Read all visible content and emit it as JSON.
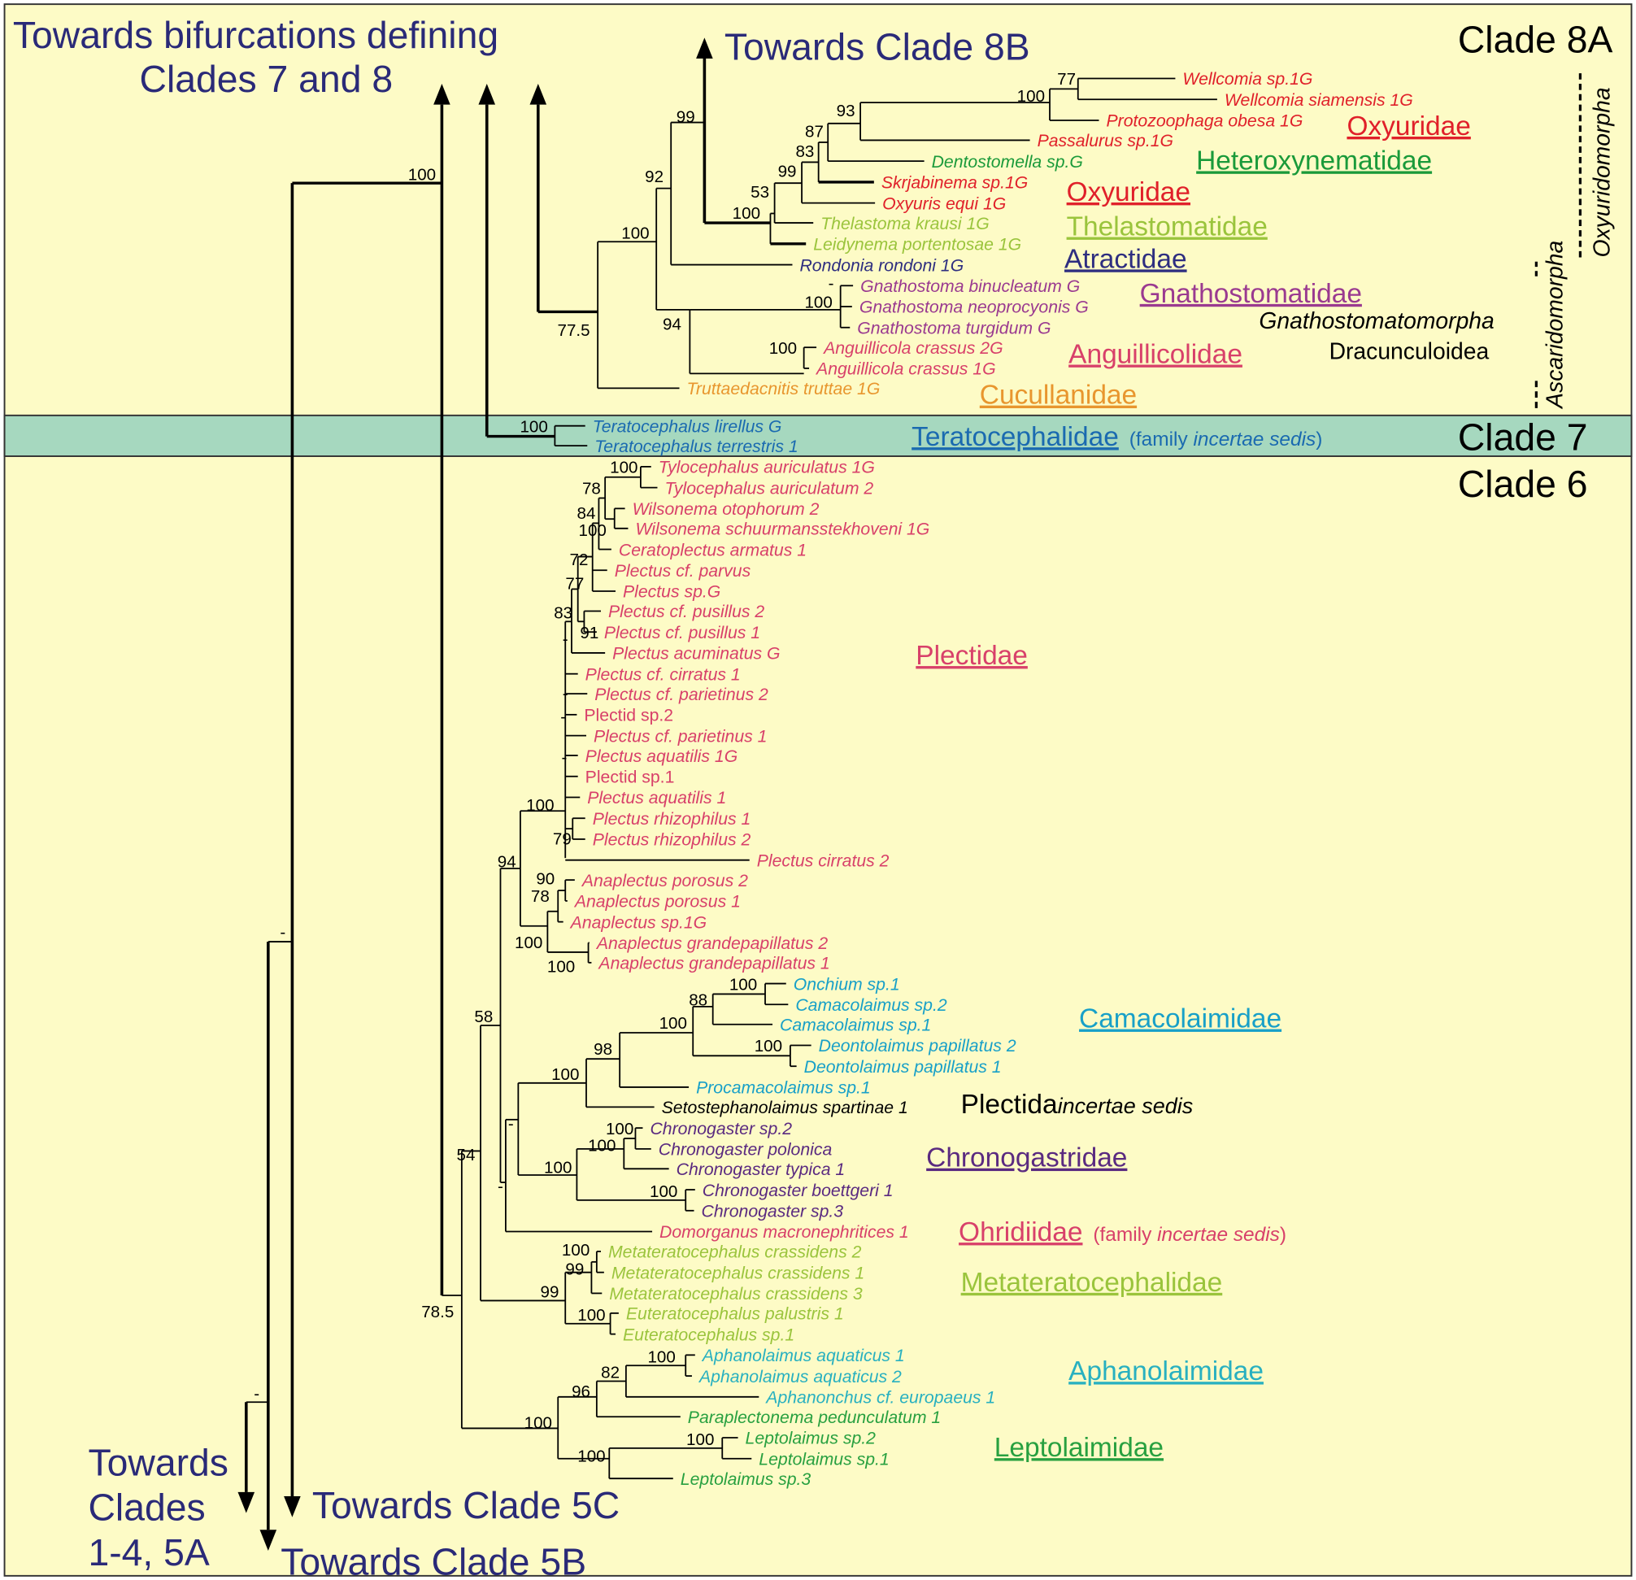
{
  "headings": {
    "bifurcations_line1": "Towards bifurcations defining",
    "bifurcations_line2": "Clades 7 and 8",
    "clade8b": "Towards Clade 8B",
    "clades14_line1": "Towards",
    "clades14_line2": "Clades",
    "clades14_line3": "1-4, 5A",
    "clade5c": "Towards Clade 5C",
    "clade5b": "Towards Clade 5B"
  },
  "clades": [
    "Clade 8A",
    "Clade 7",
    "Clade 6"
  ],
  "colors": {
    "background": "#fdfbc6",
    "clade7_band": "#a6d8bf",
    "heading": "#2a2a78"
  },
  "taxa": [
    {
      "name": "Wellcomia sp.1G",
      "color": "#e0202a",
      "italic": true
    },
    {
      "name": "Wellcomia siamensis 1G",
      "color": "#e0202a",
      "italic": true
    },
    {
      "name": "Protozoophaga obesa 1G",
      "color": "#e0202a",
      "italic": true
    },
    {
      "name": "Passalurus sp.1G",
      "color": "#e0202a",
      "italic": true
    },
    {
      "name": "Dentostomella sp.G",
      "color": "#1a9a3a",
      "italic": true
    },
    {
      "name": "Skrjabinema sp.1G",
      "color": "#e0202a",
      "italic": true
    },
    {
      "name": "Oxyuris equi 1G",
      "color": "#e0202a",
      "italic": true
    },
    {
      "name": "Thelastoma krausi 1G",
      "color": "#9ac43c",
      "italic": true
    },
    {
      "name": "Leidynema portentosae 1G",
      "color": "#9ac43c",
      "italic": true
    },
    {
      "name": "Rondonia rondoni 1G",
      "color": "#2e2e80",
      "italic": true
    },
    {
      "name": "Gnathostoma binucleatum G",
      "color": "#9a3a90",
      "italic": true
    },
    {
      "name": "Gnathostoma neoprocyonis G",
      "color": "#9a3a90",
      "italic": true
    },
    {
      "name": "Gnathostoma turgidum G",
      "color": "#9a3a90",
      "italic": true
    },
    {
      "name": "Anguillicola crassus 2G",
      "color": "#d8406a",
      "italic": true
    },
    {
      "name": "Anguillicola crassus 1G",
      "color": "#d8406a",
      "italic": true
    },
    {
      "name": "Truttaedacnitis truttae 1G",
      "color": "#e8962e",
      "italic": true
    },
    {
      "name": "Teratocephalus lirellus G",
      "color": "#1a6ab0",
      "italic": true
    },
    {
      "name": "Teratocephalus terrestris 1",
      "color": "#1a6ab0",
      "italic": true
    },
    {
      "name": "Tylocephalus auriculatus 1G",
      "color": "#d8406a",
      "italic": true
    },
    {
      "name": "Tylocephalus auriculatum 2",
      "color": "#d8406a",
      "italic": true
    },
    {
      "name": "Wilsonema otophorum 2",
      "color": "#d8406a",
      "italic": true
    },
    {
      "name": "Wilsonema schuurmansstekhoveni 1G",
      "color": "#d8406a",
      "italic": true
    },
    {
      "name": "Ceratoplectus armatus 1",
      "color": "#d8406a",
      "italic": true
    },
    {
      "name": "Plectus cf. parvus",
      "color": "#d8406a",
      "italic": true
    },
    {
      "name": "Plectus sp.G",
      "color": "#d8406a",
      "italic": true
    },
    {
      "name": "Plectus cf. pusillus 2",
      "color": "#d8406a",
      "italic": true
    },
    {
      "name": "Plectus cf. pusillus 1",
      "color": "#d8406a",
      "italic": true
    },
    {
      "name": "Plectus acuminatus G",
      "color": "#d8406a",
      "italic": true
    },
    {
      "name": "Plectus cf. cirratus 1",
      "color": "#d8406a",
      "italic": true
    },
    {
      "name": "Plectus cf. parietinus 2",
      "color": "#d8406a",
      "italic": true
    },
    {
      "name": "Plectid sp.2",
      "color": "#d8406a",
      "italic": false
    },
    {
      "name": "Plectus cf. parietinus 1",
      "color": "#d8406a",
      "italic": true
    },
    {
      "name": "Plectus aquatilis 1G",
      "color": "#d8406a",
      "italic": true
    },
    {
      "name": "Plectid sp.1",
      "color": "#d8406a",
      "italic": false
    },
    {
      "name": "Plectus aquatilis 1",
      "color": "#d8406a",
      "italic": true
    },
    {
      "name": "Plectus rhizophilus 1",
      "color": "#d8406a",
      "italic": true
    },
    {
      "name": "Plectus rhizophilus 2",
      "color": "#d8406a",
      "italic": true
    },
    {
      "name": "Plectus cirratus 2",
      "color": "#d8406a",
      "italic": true
    },
    {
      "name": "Anaplectus porosus 2",
      "color": "#d8406a",
      "italic": true
    },
    {
      "name": "Anaplectus porosus 1",
      "color": "#d8406a",
      "italic": true
    },
    {
      "name": "Anaplectus sp.1G",
      "color": "#d8406a",
      "italic": true
    },
    {
      "name": "Anaplectus grandepapillatus 2",
      "color": "#d8406a",
      "italic": true
    },
    {
      "name": "Anaplectus grandepapillatus 1",
      "color": "#d8406a",
      "italic": true
    },
    {
      "name": "Onchium sp.1",
      "color": "#18a0c8",
      "italic": true
    },
    {
      "name": "Camacolaimus sp.2",
      "color": "#18a0c8",
      "italic": true
    },
    {
      "name": "Camacolaimus sp.1",
      "color": "#18a0c8",
      "italic": true
    },
    {
      "name": "Deontolaimus papillatus 2",
      "color": "#18a0c8",
      "italic": true
    },
    {
      "name": "Deontolaimus papillatus 1",
      "color": "#18a0c8",
      "italic": true
    },
    {
      "name": "Procamacolaimus sp.1",
      "color": "#18a0c8",
      "italic": true
    },
    {
      "name": "Setostephanolaimus spartinae 1",
      "color": "#000000",
      "italic": true
    },
    {
      "name": "Chronogaster sp.2",
      "color": "#5a2a80",
      "italic": true
    },
    {
      "name": "Chronogaster polonica",
      "color": "#5a2a80",
      "italic": true
    },
    {
      "name": "Chronogaster typica 1",
      "color": "#5a2a80",
      "italic": true
    },
    {
      "name": "Chronogaster boettgeri 1",
      "color": "#5a2a80",
      "italic": true
    },
    {
      "name": "Chronogaster sp.3",
      "color": "#5a2a80",
      "italic": true
    },
    {
      "name": "Domorganus macronephritices 1",
      "color": "#d8406a",
      "italic": true
    },
    {
      "name": "Metateratocephalus crassidens 2",
      "color": "#9ac43c",
      "italic": true
    },
    {
      "name": "Metateratocephalus crassidens 1",
      "color": "#9ac43c",
      "italic": true
    },
    {
      "name": "Metateratocephalus crassidens 3",
      "color": "#9ac43c",
      "italic": true
    },
    {
      "name": "Euteratocephalus palustris 1",
      "color": "#9ac43c",
      "italic": true
    },
    {
      "name": "Euteratocephalus sp.1",
      "color": "#9ac43c",
      "italic": true
    },
    {
      "name": "Aphanolaimus aquaticus 1",
      "color": "#28b0c0",
      "italic": true
    },
    {
      "name": "Aphanolaimus aquaticus 2",
      "color": "#28b0c0",
      "italic": true
    },
    {
      "name": "Aphanonchus cf. europaeus 1",
      "color": "#28b0c0",
      "italic": true
    },
    {
      "name": "Paraplectonema pedunculatum 1",
      "color": "#28a040",
      "italic": true
    },
    {
      "name": "Leptolaimus sp.2",
      "color": "#28a040",
      "italic": true
    },
    {
      "name": "Leptolaimus sp.1",
      "color": "#28a040",
      "italic": true
    },
    {
      "name": "Leptolaimus sp.3",
      "color": "#28a040",
      "italic": true
    }
  ],
  "families": [
    {
      "name": "Oxyuridae",
      "color": "#e0202a"
    },
    {
      "name": "Heteroxynematidae",
      "color": "#1a9a3a"
    },
    {
      "name": "Oxyuridae",
      "color": "#e0202a"
    },
    {
      "name": "Thelastomatidae",
      "color": "#9ac43c"
    },
    {
      "name": "Atractidae",
      "color": "#2e2e80"
    },
    {
      "name": "Gnathostomatidae",
      "color": "#9a3a90"
    },
    {
      "name": "Anguillicolidae",
      "color": "#d8406a"
    },
    {
      "name": "Cucullanidae",
      "color": "#e8962e"
    },
    {
      "name": "Teratocephalidae",
      "color": "#1a6ab0",
      "note_pre": "(family ",
      "note_it": "incertae sedis",
      "note_post": ")"
    },
    {
      "name": "Plectidae",
      "color": "#d8406a"
    },
    {
      "name": "Camacolaimidae",
      "color": "#18a0c8"
    },
    {
      "name": "Plectida",
      "color": "#000000",
      "plain": true,
      "note_pre": "",
      "note_it": "incertae sedis",
      "note_post": ""
    },
    {
      "name": "Chronogastridae",
      "color": "#5a2a80"
    },
    {
      "name": "Ohridiidae",
      "color": "#d8406a",
      "note_pre": "(family ",
      "note_it": "incertae sedis",
      "note_post": ")"
    },
    {
      "name": "Metateratocephalidae",
      "color": "#9ac43c"
    },
    {
      "name": "Aphanolaimidae",
      "color": "#28b0c0"
    },
    {
      "name": "Leptolaimidae",
      "color": "#28a040"
    }
  ],
  "higher_taxa": {
    "gnathostomatomorpha": "Gnathostomatomorpha",
    "dracunculoidea": "Dracunculoidea",
    "ascaridomorpha": "Ascaridomorpha",
    "oxyuridomorpha": "Oxyuridomorpha"
  },
  "supports": [
    "100",
    "77",
    "100",
    "93",
    "87",
    "83",
    "99",
    "53",
    "100",
    "99",
    "92",
    "100",
    "94",
    "100",
    "-",
    "100",
    "77.5",
    "100",
    "100",
    "78",
    "84",
    "100",
    "72",
    "77",
    "83",
    "91",
    "-",
    "-",
    "-",
    "-",
    "100",
    "79",
    "94",
    "90",
    "78",
    "100",
    "100",
    "100",
    "88",
    "100",
    "100",
    "98",
    "100",
    "-",
    "100",
    "100",
    "100",
    "100",
    "-",
    "58",
    "54",
    "100",
    "99",
    "99",
    "100",
    "78.5",
    "100",
    "82",
    "96",
    "100",
    "100",
    "100",
    "-",
    "-"
  ]
}
